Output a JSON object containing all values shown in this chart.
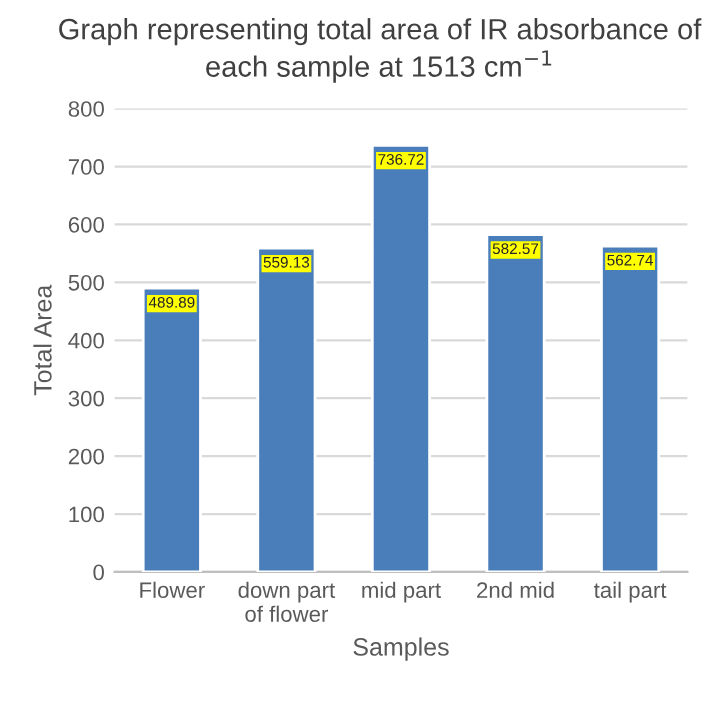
{
  "chart_data": {
    "type": "bar",
    "title": "Graph representing total area of IR absorbance of each sample at 1513 cm$^{−1}$",
    "xlabel": "Samples",
    "ylabel": "Total Area",
    "categories": [
      "Flower",
      "down part of flower",
      "mid part",
      "2nd mid",
      "tail part"
    ],
    "values": [
      489.89,
      559.13,
      736.72,
      582.57,
      562.74
    ],
    "color": "#4a7ebb",
    "data_labels": true,
    "ylim": [
      0,
      800
    ],
    "yticks": [
      0,
      100,
      200,
      300,
      400,
      500,
      600,
      700,
      800
    ],
    "grid": "y",
    "legend": false
  }
}
